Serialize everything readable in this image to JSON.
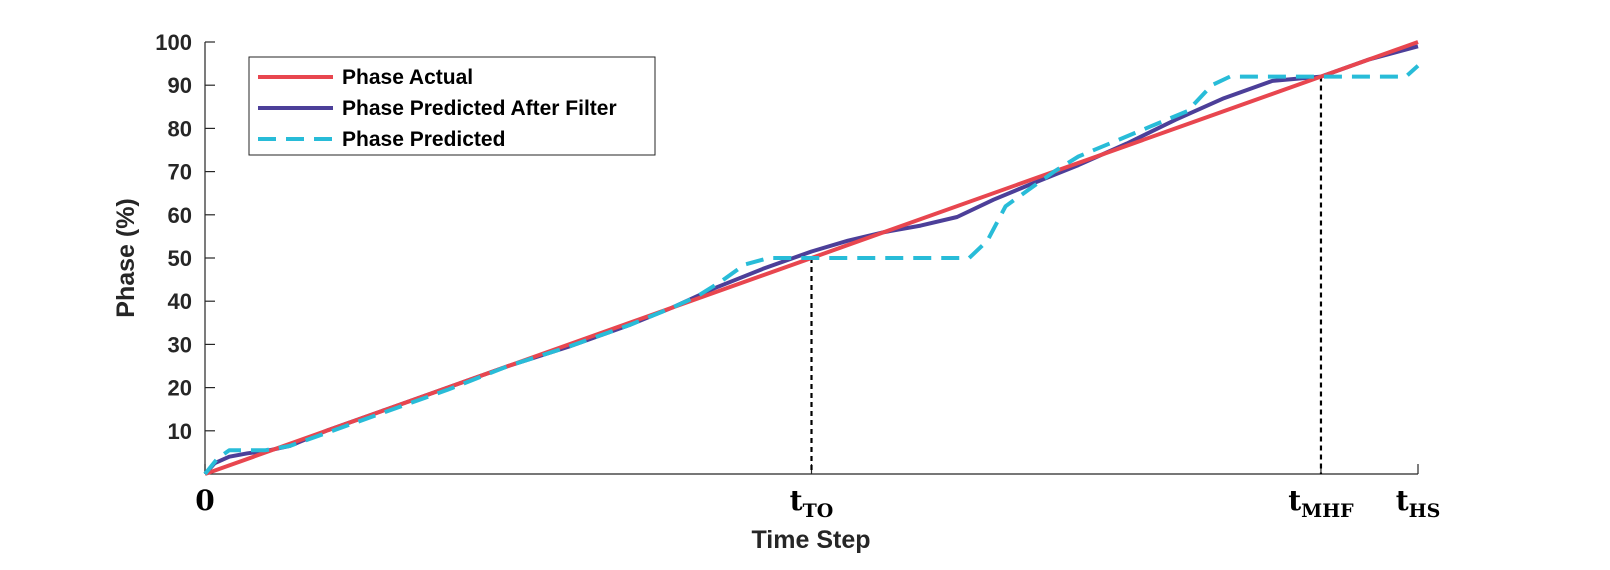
{
  "chart_data": {
    "type": "line",
    "xlabel": "Time Step",
    "ylabel": "Phase (%)",
    "xlim": [
      0,
      100
    ],
    "ylim": [
      0,
      100
    ],
    "yticks": [
      10,
      20,
      30,
      40,
      50,
      60,
      70,
      80,
      90,
      100
    ],
    "xticks": [
      {
        "x": 0,
        "main": "0",
        "sub": ""
      },
      {
        "x": 50,
        "main": "t",
        "sub": "TO"
      },
      {
        "x": 92,
        "main": "t",
        "sub": "MHF"
      },
      {
        "x": 100,
        "main": "t",
        "sub": "HS"
      }
    ],
    "markers": [
      {
        "x": 50,
        "y": 50
      },
      {
        "x": 92,
        "y": 92
      }
    ],
    "legend_position": "top-left",
    "grid": false,
    "series": [
      {
        "name": "Phase Actual",
        "color": "#e8464f",
        "style": "solid",
        "x": [
          0,
          100
        ],
        "y": [
          0,
          100
        ]
      },
      {
        "name": "Phase Predicted After Filter",
        "color": "#4c3f99",
        "style": "solid",
        "x": [
          0,
          0.8,
          2,
          3.5,
          5,
          7,
          10,
          15,
          20,
          25,
          30,
          35,
          38.5,
          42,
          46,
          50,
          53,
          56,
          59,
          62,
          65,
          68,
          72,
          76,
          80,
          84,
          88,
          92,
          96,
          100
        ],
        "y": [
          0,
          2.5,
          4,
          4.8,
          5.3,
          6.5,
          10,
          15,
          20,
          25,
          29.5,
          34.5,
          38.5,
          43,
          47.5,
          51.5,
          54,
          56,
          57.5,
          59.5,
          63.5,
          67,
          71.5,
          76.5,
          82,
          87,
          91,
          92,
          96,
          99
        ]
      },
      {
        "name": "Phase Predicted",
        "color": "#28bcd8",
        "style": "dashed",
        "x": [
          0,
          1,
          2,
          3,
          5,
          7,
          10,
          15,
          20,
          25,
          30,
          35,
          38.5,
          40.5,
          42.5,
          44.5,
          46.5,
          50,
          55,
          60,
          63,
          64.5,
          66,
          68,
          70,
          72,
          75,
          78,
          81,
          83,
          84.5,
          86,
          88,
          92,
          96,
          99,
          100
        ],
        "y": [
          0,
          3.5,
          5.5,
          5.5,
          5.5,
          6.5,
          9.5,
          14.5,
          19.5,
          25,
          29.5,
          34.5,
          38.5,
          41,
          44.5,
          48.5,
          50,
          50,
          50,
          50,
          50,
          54,
          62,
          66,
          70,
          73.5,
          77,
          80.5,
          84,
          90,
          92,
          92,
          92,
          92,
          92,
          92,
          94.5
        ]
      }
    ]
  }
}
